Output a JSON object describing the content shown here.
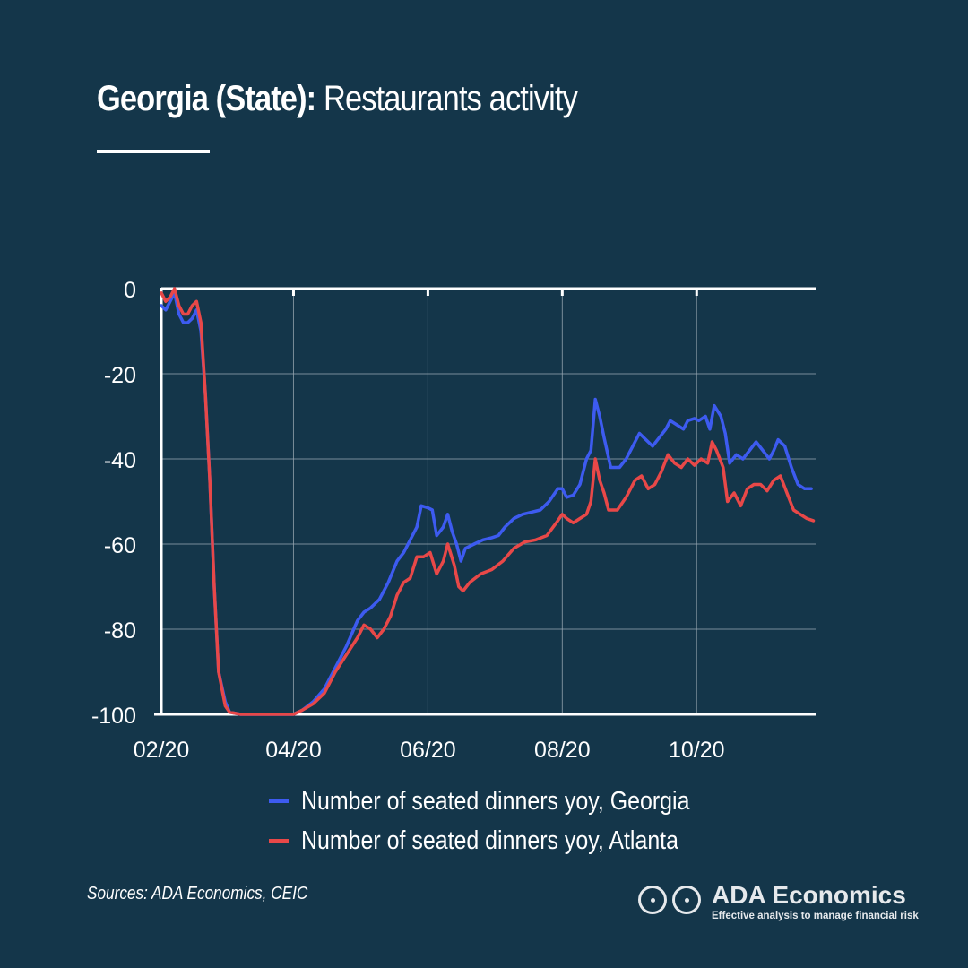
{
  "header": {
    "title_bold": "Georgia (State):",
    "title_rest": " Restaurants activity"
  },
  "chart_data": {
    "type": "line",
    "ylim": [
      -100,
      0
    ],
    "yticks": [
      0,
      -20,
      -40,
      -60,
      -80,
      -100
    ],
    "ytick_labels": [
      "0",
      "-20",
      "-40",
      "-60",
      "-80",
      "-100"
    ],
    "xlim": [
      "2020-02-01",
      "2020-11-24"
    ],
    "xticks": [
      "2020-02-01",
      "2020-04-01",
      "2020-06-01",
      "2020-08-01",
      "2020-10-01"
    ],
    "xtick_labels": [
      "02/20",
      "04/20",
      "06/20",
      "08/20",
      "10/20"
    ],
    "grid": true,
    "legend_position": "bottom",
    "series": [
      {
        "name": "Number of seated dinners yoy, Georgia",
        "color": "#3d5bf0",
        "points": [
          [
            "2020-02-01",
            -4
          ],
          [
            "2020-02-03",
            -5
          ],
          [
            "2020-02-05",
            -3
          ],
          [
            "2020-02-07",
            -1
          ],
          [
            "2020-02-09",
            -6
          ],
          [
            "2020-02-11",
            -8
          ],
          [
            "2020-02-13",
            -8
          ],
          [
            "2020-02-15",
            -7
          ],
          [
            "2020-02-17",
            -5
          ],
          [
            "2020-02-19",
            -10
          ],
          [
            "2020-02-21",
            -25
          ],
          [
            "2020-02-23",
            -45
          ],
          [
            "2020-02-25",
            -70
          ],
          [
            "2020-02-27",
            -90
          ],
          [
            "2020-03-01",
            -97
          ],
          [
            "2020-03-03",
            -99.5
          ],
          [
            "2020-03-08",
            -100
          ],
          [
            "2020-03-15",
            -100
          ],
          [
            "2020-03-22",
            -100
          ],
          [
            "2020-03-29",
            -100
          ],
          [
            "2020-04-01",
            -100
          ],
          [
            "2020-04-05",
            -99
          ],
          [
            "2020-04-10",
            -97
          ],
          [
            "2020-04-15",
            -94
          ],
          [
            "2020-04-20",
            -89
          ],
          [
            "2020-04-25",
            -84
          ],
          [
            "2020-04-30",
            -78
          ],
          [
            "2020-05-03",
            -76
          ],
          [
            "2020-05-06",
            -75
          ],
          [
            "2020-05-10",
            -73
          ],
          [
            "2020-05-14",
            -69
          ],
          [
            "2020-05-18",
            -64
          ],
          [
            "2020-05-21",
            -62
          ],
          [
            "2020-05-24",
            -59
          ],
          [
            "2020-05-27",
            -56
          ],
          [
            "2020-05-29",
            -51
          ],
          [
            "2020-06-01",
            -51.5
          ],
          [
            "2020-06-03",
            -52
          ],
          [
            "2020-06-05",
            -58
          ],
          [
            "2020-06-08",
            -56
          ],
          [
            "2020-06-10",
            -53
          ],
          [
            "2020-06-12",
            -57
          ],
          [
            "2020-06-14",
            -60
          ],
          [
            "2020-06-16",
            -64
          ],
          [
            "2020-06-18",
            -61
          ],
          [
            "2020-06-22",
            -60
          ],
          [
            "2020-06-26",
            -59
          ],
          [
            "2020-06-30",
            -58.5
          ],
          [
            "2020-07-03",
            -58
          ],
          [
            "2020-07-06",
            -56
          ],
          [
            "2020-07-10",
            -54
          ],
          [
            "2020-07-14",
            -53
          ],
          [
            "2020-07-18",
            -52.5
          ],
          [
            "2020-07-22",
            -52
          ],
          [
            "2020-07-26",
            -50
          ],
          [
            "2020-07-30",
            -47
          ],
          [
            "2020-08-01",
            -47
          ],
          [
            "2020-08-03",
            -49
          ],
          [
            "2020-08-06",
            -48.5
          ],
          [
            "2020-08-09",
            -46
          ],
          [
            "2020-08-12",
            -40
          ],
          [
            "2020-08-14",
            -38
          ],
          [
            "2020-08-16",
            -26
          ],
          [
            "2020-08-18",
            -30
          ],
          [
            "2020-08-20",
            -35
          ],
          [
            "2020-08-23",
            -42
          ],
          [
            "2020-08-27",
            -42
          ],
          [
            "2020-08-30",
            -40
          ],
          [
            "2020-09-02",
            -37
          ],
          [
            "2020-09-05",
            -34
          ],
          [
            "2020-09-08",
            -35.5
          ],
          [
            "2020-09-11",
            -37
          ],
          [
            "2020-09-14",
            -35
          ],
          [
            "2020-09-17",
            -33
          ],
          [
            "2020-09-19",
            -31
          ],
          [
            "2020-09-22",
            -32
          ],
          [
            "2020-09-25",
            -33
          ],
          [
            "2020-09-27",
            -31
          ],
          [
            "2020-09-30",
            -30.5
          ],
          [
            "2020-10-02",
            -31
          ],
          [
            "2020-10-05",
            -30
          ],
          [
            "2020-10-07",
            -33
          ],
          [
            "2020-10-09",
            -27.5
          ],
          [
            "2020-10-12",
            -30
          ],
          [
            "2020-10-14",
            -34
          ],
          [
            "2020-10-16",
            -41
          ],
          [
            "2020-10-19",
            -39
          ],
          [
            "2020-10-22",
            -40
          ],
          [
            "2020-10-25",
            -38
          ],
          [
            "2020-10-28",
            -36
          ],
          [
            "2020-10-31",
            -38
          ],
          [
            "2020-11-03",
            -40
          ],
          [
            "2020-11-05",
            -38
          ],
          [
            "2020-11-07",
            -35.5
          ],
          [
            "2020-11-10",
            -37
          ],
          [
            "2020-11-13",
            -42
          ],
          [
            "2020-11-16",
            -46
          ],
          [
            "2020-11-19",
            -47
          ],
          [
            "2020-11-22",
            -47
          ]
        ]
      },
      {
        "name": "Number of seated dinners yoy, Atlanta",
        "color": "#e84848",
        "points": [
          [
            "2020-02-01",
            -1
          ],
          [
            "2020-02-03",
            -3
          ],
          [
            "2020-02-05",
            -2
          ],
          [
            "2020-02-07",
            0
          ],
          [
            "2020-02-09",
            -4
          ],
          [
            "2020-02-11",
            -6
          ],
          [
            "2020-02-13",
            -6
          ],
          [
            "2020-02-15",
            -4
          ],
          [
            "2020-02-17",
            -3
          ],
          [
            "2020-02-19",
            -8
          ],
          [
            "2020-02-21",
            -25
          ],
          [
            "2020-02-23",
            -45
          ],
          [
            "2020-02-25",
            -70
          ],
          [
            "2020-02-27",
            -90
          ],
          [
            "2020-03-01",
            -98
          ],
          [
            "2020-03-03",
            -99.5
          ],
          [
            "2020-03-08",
            -100
          ],
          [
            "2020-03-15",
            -100
          ],
          [
            "2020-03-22",
            -100
          ],
          [
            "2020-03-29",
            -100
          ],
          [
            "2020-04-01",
            -100
          ],
          [
            "2020-04-05",
            -99
          ],
          [
            "2020-04-10",
            -97.5
          ],
          [
            "2020-04-15",
            -95
          ],
          [
            "2020-04-20",
            -90
          ],
          [
            "2020-04-25",
            -86
          ],
          [
            "2020-04-30",
            -82
          ],
          [
            "2020-05-03",
            -79
          ],
          [
            "2020-05-06",
            -80
          ],
          [
            "2020-05-09",
            -82
          ],
          [
            "2020-05-12",
            -80
          ],
          [
            "2020-05-15",
            -77
          ],
          [
            "2020-05-18",
            -72
          ],
          [
            "2020-05-21",
            -69
          ],
          [
            "2020-05-24",
            -68
          ],
          [
            "2020-05-27",
            -63
          ],
          [
            "2020-05-30",
            -63
          ],
          [
            "2020-06-02",
            -62
          ],
          [
            "2020-06-05",
            -67
          ],
          [
            "2020-06-08",
            -64
          ],
          [
            "2020-06-10",
            -60
          ],
          [
            "2020-06-13",
            -65
          ],
          [
            "2020-06-15",
            -70
          ],
          [
            "2020-06-17",
            -71
          ],
          [
            "2020-06-20",
            -69
          ],
          [
            "2020-06-25",
            -67
          ],
          [
            "2020-06-30",
            -66
          ],
          [
            "2020-07-05",
            -64
          ],
          [
            "2020-07-10",
            -61
          ],
          [
            "2020-07-15",
            -59.5
          ],
          [
            "2020-07-20",
            -59
          ],
          [
            "2020-07-25",
            -58
          ],
          [
            "2020-07-30",
            -54.5
          ],
          [
            "2020-08-01",
            -53
          ],
          [
            "2020-08-03",
            -54
          ],
          [
            "2020-08-06",
            -55
          ],
          [
            "2020-08-09",
            -54
          ],
          [
            "2020-08-12",
            -53
          ],
          [
            "2020-08-14",
            -50
          ],
          [
            "2020-08-16",
            -40
          ],
          [
            "2020-08-18",
            -45
          ],
          [
            "2020-08-20",
            -48
          ],
          [
            "2020-08-22",
            -52
          ],
          [
            "2020-08-26",
            -52
          ],
          [
            "2020-08-30",
            -49
          ],
          [
            "2020-09-03",
            -45
          ],
          [
            "2020-09-06",
            -44
          ],
          [
            "2020-09-09",
            -47
          ],
          [
            "2020-09-12",
            -46
          ],
          [
            "2020-09-15",
            -43
          ],
          [
            "2020-09-18",
            -39
          ],
          [
            "2020-09-21",
            -41
          ],
          [
            "2020-09-24",
            -42
          ],
          [
            "2020-09-27",
            -40
          ],
          [
            "2020-09-30",
            -41.5
          ],
          [
            "2020-10-03",
            -40
          ],
          [
            "2020-10-06",
            -41
          ],
          [
            "2020-10-08",
            -36
          ],
          [
            "2020-10-10",
            -38
          ],
          [
            "2020-10-13",
            -42
          ],
          [
            "2020-10-15",
            -50
          ],
          [
            "2020-10-18",
            -48
          ],
          [
            "2020-10-21",
            -51
          ],
          [
            "2020-10-24",
            -47
          ],
          [
            "2020-10-27",
            -46
          ],
          [
            "2020-10-30",
            -46
          ],
          [
            "2020-11-02",
            -47.5
          ],
          [
            "2020-11-05",
            -45
          ],
          [
            "2020-11-08",
            -44
          ],
          [
            "2020-11-11",
            -48
          ],
          [
            "2020-11-14",
            -52
          ],
          [
            "2020-11-17",
            -53
          ],
          [
            "2020-11-20",
            -54
          ],
          [
            "2020-11-23",
            -54.5
          ]
        ]
      }
    ]
  },
  "footer": {
    "sources": "Sources: ADA Economics, CEIC",
    "brand_name": "ADA Economics",
    "brand_tagline": "Effective analysis to manage financial risk"
  }
}
